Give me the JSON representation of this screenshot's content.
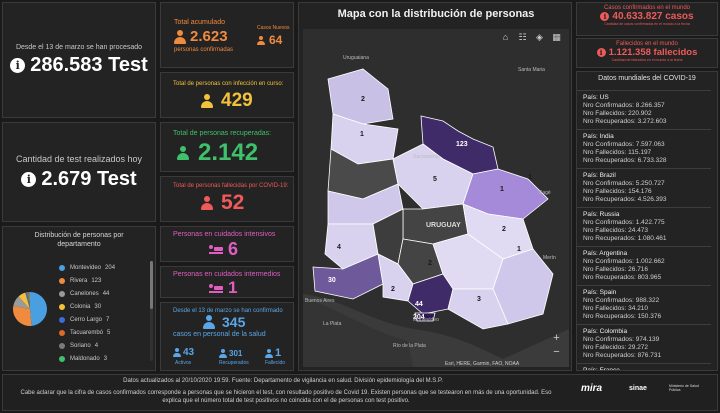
{
  "processed": {
    "note": "Desde el 13 de marzo se han procesado",
    "value": "286.583 Test"
  },
  "today": {
    "note": "Cantidad de test realizados hoy",
    "value": "2.679 Test"
  },
  "total_acumulado": {
    "title": "Total acumulado",
    "value": "2.623",
    "sub": "personas confirmadas",
    "new_label": "Casos Nuevos",
    "new_value": "64"
  },
  "curso": {
    "label": "Total de personas con infección en curso:",
    "value": "429"
  },
  "recuperadas": {
    "label": "Total de personas recuperadas:",
    "value": "2.142"
  },
  "fallecidas": {
    "label": "Total de personas fallecidas por COVID-19:",
    "value": "52"
  },
  "intensivos": {
    "label": "Personas en cuidados intensivos",
    "value": "6"
  },
  "intermedios": {
    "label": "Personas en cuidados intermedios",
    "value": "1"
  },
  "salud": {
    "note": "Desde el 13 de marzo se han confirmado",
    "value": "345",
    "sub": "casos en personal de la salud",
    "activos_value": "43",
    "activos_label": "Activos",
    "recuperados_value": "301",
    "recuperados_label": "Recuperados",
    "fallecido_value": "1",
    "fallecido_label": "Fallecido"
  },
  "distribution": {
    "title": "Distribución de personas por departamento",
    "items": [
      {
        "label": "Montevideo",
        "value": 204,
        "color": "#4a9fe0"
      },
      {
        "label": "Rivera",
        "value": 123,
        "color": "#f08a3e"
      },
      {
        "label": "Canelones",
        "value": 44,
        "color": "#9a9a9a"
      },
      {
        "label": "Colonia",
        "value": 30,
        "color": "#f3c23a"
      },
      {
        "label": "Cerro Largo",
        "value": 7,
        "color": "#3a6ed6"
      },
      {
        "label": "Tacuarembó",
        "value": 5,
        "color": "#d96a2a"
      },
      {
        "label": "Soriano",
        "value": 4,
        "color": "#7a7a7a"
      },
      {
        "label": "Maldonado",
        "value": 3,
        "color": "#3ec16a"
      }
    ]
  },
  "map": {
    "title": "Mapa con la distribución de personas",
    "attribution": "Esri, HERE, Garmin, FAO, NOAA",
    "zoom_in": "+",
    "zoom_out": "−",
    "country_label": "URUGUAY",
    "place_labels": [
      "Uruguaiana",
      "Santa Maria",
      "Sacramento",
      "Buenos Aires",
      "La Plata",
      "Río de la Plata",
      "Montevideo",
      "Bagé",
      "Merín"
    ],
    "counts": [
      "123",
      "2",
      "1",
      "5",
      "1",
      "2",
      "4",
      "2",
      "30",
      "2",
      "44",
      "204",
      "3",
      "1",
      "1"
    ]
  },
  "world_confirmed": {
    "label": "Casos confirmados en el mundo",
    "value": "40.633.827 casos",
    "sub": "Cantidad de casos confirmados en el mundo a la fecha"
  },
  "world_deaths": {
    "label": "Fallecidos en el mundo",
    "value": "1.121.358 fallecidos",
    "sub": "Cantidad de fallecidos en el mundo a la fecha"
  },
  "world": {
    "title": "Datos mundiales del COVID-19",
    "pais_prefix": "País: ",
    "conf_prefix": "Nro Confirmados: ",
    "fall_prefix": "Nro Fallecidos: ",
    "rec_prefix": "Nro Recuperados: ",
    "countries": [
      {
        "pais": "US",
        "conf": "8.266.357",
        "fall": "220.902",
        "rec": "3.272.603"
      },
      {
        "pais": "India",
        "conf": "7.597.063",
        "fall": "115.197",
        "rec": "6.733.328"
      },
      {
        "pais": "Brazil",
        "conf": "5.250.727",
        "fall": "154.176",
        "rec": "4.526.393"
      },
      {
        "pais": "Russia",
        "conf": "1.422.775",
        "fall": "24.473",
        "rec": "1.080.461"
      },
      {
        "pais": "Argentina",
        "conf": "1.002.662",
        "fall": "26.716",
        "rec": "803.965"
      },
      {
        "pais": "Spain",
        "conf": "988.322",
        "fall": "34.210",
        "rec": "150.376"
      },
      {
        "pais": "Colombia",
        "conf": "974.139",
        "fall": "29.272",
        "rec": "876.731"
      },
      {
        "pais": "France",
        "conf": "973.068",
        "fall": "33.909",
        "rec": ""
      }
    ]
  },
  "footer": {
    "line1": "Datos actualizados al 20/10/2020 19:59. Fuente: Departamento de vigilancia en salud. División epidemiología del M.S.P.",
    "line2": "Cabe aclarar que la cifra de casos confirmados corresponde a personas que se hicieron el test, con resultado positivo de Covid 19. Existen personas que se testearon en más de una oportunidad. Eso explica que el número total de test positivos no coincida con el de personas con test positivo.",
    "logo1": "mira",
    "logo2": "sinae",
    "logo3": "Ministerio de Salud Pública"
  }
}
